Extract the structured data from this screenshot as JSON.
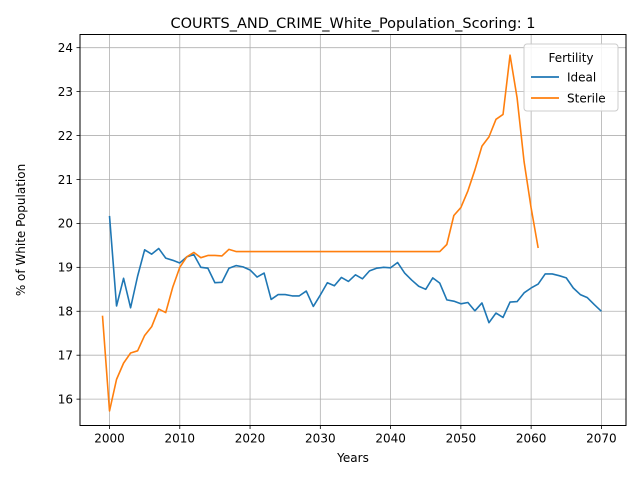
{
  "chart_data": {
    "type": "line",
    "title": "COURTS_AND_CRIME_White_Population_Scoring: 1",
    "xlabel": "Years",
    "ylabel": "% of White Population",
    "xlim": [
      1995.8,
      2073.5
    ],
    "ylim": [
      15.4,
      24.3
    ],
    "xticks": [
      2000,
      2010,
      2020,
      2030,
      2040,
      2050,
      2060,
      2070
    ],
    "yticks": [
      16,
      17,
      18,
      19,
      20,
      21,
      22,
      23,
      24
    ],
    "grid": true,
    "legend": {
      "title": "Fertility",
      "placement": "top-right"
    },
    "series": [
      {
        "name": "Ideal",
        "color": "#1f77b4",
        "x": [
          2000,
          2001,
          2002,
          2003,
          2004,
          2005,
          2006,
          2007,
          2008,
          2009,
          2010,
          2011,
          2012,
          2013,
          2014,
          2015,
          2016,
          2017,
          2018,
          2019,
          2020,
          2021,
          2022,
          2023,
          2024,
          2025,
          2026,
          2027,
          2028,
          2029,
          2030,
          2031,
          2032,
          2033,
          2034,
          2035,
          2036,
          2037,
          2038,
          2039,
          2040,
          2041,
          2042,
          2043,
          2044,
          2045,
          2046,
          2047,
          2048,
          2049,
          2050,
          2051,
          2052,
          2053,
          2054,
          2055,
          2056,
          2057,
          2058,
          2059,
          2060,
          2061,
          2062,
          2063,
          2064,
          2065,
          2066,
          2067,
          2068,
          2069,
          2070
        ],
        "values": [
          20.17,
          18.12,
          18.75,
          18.08,
          18.8,
          19.4,
          19.3,
          19.43,
          19.21,
          19.16,
          19.1,
          19.24,
          19.29,
          19.0,
          18.98,
          18.65,
          18.66,
          18.98,
          19.04,
          19.01,
          18.94,
          18.78,
          18.87,
          18.27,
          18.38,
          18.38,
          18.35,
          18.35,
          18.46,
          18.11,
          18.37,
          18.65,
          18.58,
          18.77,
          18.68,
          18.83,
          18.74,
          18.92,
          18.98,
          19.0,
          18.99,
          19.11,
          18.87,
          18.71,
          18.57,
          18.5,
          18.76,
          18.64,
          18.26,
          18.23,
          18.17,
          18.2,
          18.01,
          18.19,
          17.74,
          17.96,
          17.86,
          18.21,
          18.22,
          18.42,
          18.53,
          18.62,
          18.85,
          18.85,
          18.81,
          18.76,
          18.53,
          18.38,
          18.31,
          18.15,
          18.0
        ]
      },
      {
        "name": "Sterile",
        "color": "#ff7f0e",
        "x": [
          1999,
          2000,
          2001,
          2002,
          2003,
          2004,
          2005,
          2006,
          2007,
          2008,
          2009,
          2010,
          2011,
          2012,
          2013,
          2014,
          2015,
          2016,
          2017,
          2018,
          2019,
          2020,
          2021,
          2022,
          2023,
          2024,
          2025,
          2026,
          2027,
          2028,
          2029,
          2030,
          2031,
          2032,
          2033,
          2034,
          2035,
          2036,
          2037,
          2038,
          2039,
          2040,
          2041,
          2042,
          2043,
          2044,
          2045,
          2046,
          2047,
          2048,
          2049,
          2050,
          2051,
          2052,
          2053,
          2054,
          2055,
          2056,
          2057,
          2058,
          2059,
          2060,
          2061
        ],
        "values": [
          17.9,
          15.73,
          16.45,
          16.82,
          17.05,
          17.1,
          17.45,
          17.65,
          18.05,
          17.97,
          18.55,
          19.0,
          19.24,
          19.34,
          19.22,
          19.27,
          19.27,
          19.26,
          19.41,
          19.36,
          19.36,
          19.36,
          19.36,
          19.36,
          19.36,
          19.36,
          19.36,
          19.36,
          19.36,
          19.36,
          19.36,
          19.36,
          19.36,
          19.36,
          19.36,
          19.36,
          19.36,
          19.36,
          19.36,
          19.36,
          19.36,
          19.36,
          19.36,
          19.36,
          19.36,
          19.36,
          19.36,
          19.36,
          19.36,
          19.52,
          20.18,
          20.36,
          20.74,
          21.22,
          21.76,
          21.97,
          22.37,
          22.48,
          23.83,
          22.86,
          21.4,
          20.35,
          19.44
        ]
      }
    ]
  }
}
